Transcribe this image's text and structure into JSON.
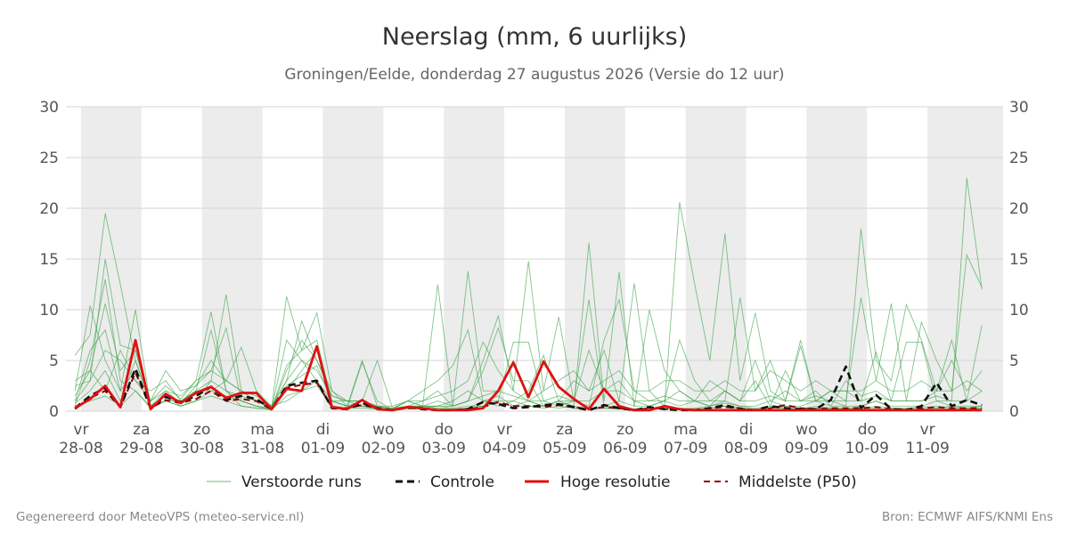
{
  "chart_data": {
    "type": "line",
    "title": "Neerslag (mm, 6 uurlijks)",
    "subtitle": "Groningen/Eelde, donderdag 27 augustus 2026 (Versie do 12 uur)",
    "ylim": [
      0,
      30
    ],
    "yticks": [
      0,
      5,
      10,
      15,
      20,
      25,
      30
    ],
    "xlim": [
      0,
      62
    ],
    "x_ticks": [
      {
        "x": 1,
        "day": "vr",
        "date": "28-08"
      },
      {
        "x": 5,
        "day": "za",
        "date": "29-08"
      },
      {
        "x": 9,
        "day": "zo",
        "date": "30-08"
      },
      {
        "x": 13,
        "day": "ma",
        "date": "31-08"
      },
      {
        "x": 17,
        "day": "di",
        "date": "01-09"
      },
      {
        "x": 21,
        "day": "wo",
        "date": "02-09"
      },
      {
        "x": 25,
        "day": "do",
        "date": "03-09"
      },
      {
        "x": 29,
        "day": "vr",
        "date": "04-09"
      },
      {
        "x": 33,
        "day": "za",
        "date": "05-09"
      },
      {
        "x": 37,
        "day": "zo",
        "date": "06-09"
      },
      {
        "x": 41,
        "day": "ma",
        "date": "07-09"
      },
      {
        "x": 45,
        "day": "di",
        "date": "08-09"
      },
      {
        "x": 49,
        "day": "wo",
        "date": "09-09"
      },
      {
        "x": 53,
        "day": "do",
        "date": "10-09"
      },
      {
        "x": 57,
        "day": "vr",
        "date": "11-09"
      }
    ],
    "shaded_days": [
      [
        1,
        5
      ],
      [
        9,
        13
      ],
      [
        17,
        21
      ],
      [
        25,
        29
      ],
      [
        33,
        37
      ],
      [
        41,
        45
      ],
      [
        49,
        53
      ],
      [
        57,
        62
      ]
    ],
    "grid": true,
    "legend_position": "bottom",
    "series": [
      {
        "name": "Controle",
        "style": "dashed",
        "color": "#111111",
        "values": [
          0.3,
          1.5,
          2.3,
          0.4,
          4.2,
          0.3,
          1.4,
          0.9,
          1.5,
          2.4,
          1.1,
          1.5,
          1.2,
          0.2,
          2.5,
          2.8,
          3.0,
          0.3,
          0.2,
          0.8,
          0.3,
          0.1,
          0.4,
          0.2,
          0.1,
          0.1,
          0.2,
          0.9,
          0.7,
          0.3,
          0.4,
          0.6,
          0.7,
          0.4,
          0.1,
          0.6,
          0.3,
          0.1,
          0.4,
          0.2,
          0.1,
          0.1,
          0.3,
          0.6,
          0.2,
          0.1,
          0.5,
          0.3,
          0.2,
          0.2,
          1.1,
          4.4,
          0.3,
          1.6,
          0.2,
          0.1,
          0.5,
          2.8,
          0.5,
          1.1,
          0.6
        ]
      },
      {
        "name": "Hoge resolutie",
        "style": "solid",
        "color": "#e01010",
        "values": [
          0.3,
          1.2,
          2.5,
          0.4,
          7.0,
          0.2,
          1.7,
          0.8,
          1.8,
          2.4,
          1.3,
          1.8,
          1.8,
          0.2,
          2.2,
          2.0,
          6.4,
          0.4,
          0.2,
          1.1,
          0.2,
          0.1,
          0.4,
          0.3,
          0.1,
          0.1,
          0.1,
          0.3,
          2.0,
          4.8,
          1.4,
          4.9,
          2.4,
          1.2,
          0.2,
          2.2,
          0.5,
          0.1,
          0.1,
          0.5,
          0.2,
          0.1,
          0.1,
          0.1,
          0.1,
          0.1,
          0.1,
          0.1,
          0.1,
          0.1,
          0.1,
          0.1,
          0.1,
          0.1,
          0.1,
          0.1,
          0.1,
          0.1,
          0.1,
          0.1,
          0.1
        ]
      },
      {
        "name": "Middelste (P50)",
        "style": "dashed",
        "color": "#8b0000",
        "values": [
          0.2,
          1.3,
          2.0,
          0.4,
          3.8,
          0.3,
          1.1,
          0.8,
          1.2,
          2.0,
          1.0,
          1.2,
          1.0,
          0.2,
          2.3,
          2.6,
          2.8,
          0.4,
          0.3,
          0.6,
          0.3,
          0.1,
          0.3,
          0.3,
          0.1,
          0.1,
          0.2,
          0.4,
          0.9,
          0.5,
          0.5,
          0.4,
          0.6,
          0.4,
          0.2,
          0.4,
          0.3,
          0.1,
          0.3,
          0.2,
          0.2,
          0.1,
          0.3,
          0.4,
          0.3,
          0.1,
          0.3,
          0.6,
          0.3,
          0.2,
          0.3,
          0.3,
          0.3,
          0.4,
          0.2,
          0.2,
          0.3,
          0.4,
          0.3,
          0.3,
          0.3
        ]
      }
    ],
    "ensemble": {
      "name": "Verstoorde runs",
      "color": "#2e9e3e",
      "members": [
        [
          5.5,
          7.5,
          19.5,
          12.5,
          5.0,
          1.0,
          2.5,
          1.2,
          3.0,
          9.8,
          2.0,
          1.5,
          1.0,
          0.5,
          2.0,
          4.0,
          6.0,
          1.0,
          0.5,
          1.0,
          0.3,
          0.1,
          0.5,
          0.5,
          0.3,
          0.2,
          0.3,
          1.0,
          1.5,
          0.5,
          1.0,
          0.5,
          1.0,
          0.3,
          0.2,
          0.5,
          0.5,
          0.2,
          0.3,
          0.5,
          0.2,
          0.3,
          0.5,
          0.8,
          0.5,
          0.3,
          0.5,
          0.3,
          0.2,
          0.5,
          0.3,
          0.2,
          0.5,
          1.0,
          0.3,
          0.2,
          0.5,
          0.3,
          0.5,
          0.3,
          0.5
        ],
        [
          2.0,
          10.4,
          5.0,
          2.0,
          10.0,
          0.5,
          1.5,
          1.0,
          2.0,
          3.0,
          11.5,
          2.0,
          1.0,
          0.3,
          11.3,
          6.0,
          9.7,
          2.0,
          0.5,
          5.0,
          0.5,
          0.2,
          1.0,
          0.5,
          0.5,
          0.3,
          0.5,
          0.5,
          1.0,
          1.0,
          0.5,
          0.5,
          0.3,
          0.5,
          0.2,
          0.3,
          0.2,
          0.2,
          0.3,
          0.2,
          0.3,
          0.2,
          0.3,
          0.5,
          0.3,
          0.2,
          0.3,
          0.5,
          0.3,
          0.3,
          0.3,
          0.3,
          0.2,
          0.5,
          0.3,
          0.3,
          0.3,
          0.5,
          0.3,
          0.3,
          0.3
        ],
        [
          1.0,
          3.0,
          15.0,
          6.5,
          6.0,
          0.5,
          2.0,
          0.8,
          2.5,
          5.0,
          3.0,
          6.3,
          2.0,
          0.5,
          3.0,
          8.9,
          5.0,
          1.5,
          1.0,
          1.0,
          5.0,
          0.3,
          1.0,
          0.5,
          12.5,
          0.5,
          13.8,
          2.0,
          2.0,
          5.0,
          1.0,
          0.5,
          1.0,
          0.5,
          16.6,
          1.0,
          13.7,
          0.5,
          0.5,
          1.0,
          0.5,
          1.0,
          0.5,
          1.0,
          0.5,
          0.5,
          1.0,
          0.5,
          0.5,
          1.0,
          0.5,
          0.5,
          0.5,
          1.0,
          0.5,
          0.5,
          0.5,
          1.0,
          0.5,
          0.5,
          0.5
        ],
        [
          0.5,
          5.0,
          13.0,
          3.0,
          2.0,
          0.5,
          1.0,
          0.5,
          1.0,
          2.0,
          1.5,
          1.0,
          0.5,
          0.3,
          2.5,
          3.5,
          4.5,
          1.0,
          0.5,
          0.5,
          0.3,
          0.2,
          0.3,
          0.3,
          0.5,
          0.5,
          1.0,
          5.0,
          9.4,
          2.0,
          14.8,
          2.0,
          9.3,
          1.0,
          11.0,
          0.5,
          1.0,
          12.6,
          2.0,
          0.5,
          20.6,
          12.5,
          5.0,
          17.5,
          3.0,
          9.7,
          2.0,
          1.0,
          7.0,
          1.0,
          2.0,
          1.0,
          11.2,
          3.0,
          10.6,
          1.0,
          8.8,
          5.0,
          2.0,
          15.4,
          12.2
        ],
        [
          1.5,
          4.0,
          10.6,
          4.0,
          6.0,
          1.0,
          2.0,
          1.5,
          3.0,
          4.0,
          8.2,
          1.0,
          0.5,
          0.2,
          4.0,
          7.0,
          5.0,
          2.0,
          1.0,
          0.5,
          0.2,
          0.1,
          0.3,
          0.5,
          0.5,
          1.0,
          2.0,
          1.0,
          1.0,
          6.8,
          6.8,
          1.0,
          0.5,
          1.0,
          6.0,
          2.0,
          3.0,
          1.0,
          0.5,
          1.0,
          2.0,
          1.0,
          3.0,
          2.0,
          1.0,
          5.0,
          1.0,
          2.0,
          1.0,
          1.0,
          1.0,
          0.5,
          18.0,
          5.0,
          3.0,
          10.5,
          7.0,
          2.0,
          5.0,
          2.0,
          4.0
        ],
        [
          1.0,
          6.0,
          8.0,
          2.0,
          4.0,
          0.5,
          1.0,
          1.0,
          2.0,
          8.0,
          2.0,
          1.0,
          0.5,
          0.2,
          4.5,
          6.0,
          7.0,
          1.0,
          0.5,
          0.5,
          0.5,
          0.2,
          0.5,
          1.0,
          2.0,
          0.5,
          1.0,
          4.0,
          8.2,
          3.0,
          3.0,
          0.5,
          1.0,
          3.0,
          2.0,
          6.0,
          1.0,
          0.5,
          10.0,
          4.0,
          2.0,
          1.0,
          0.5,
          2.0,
          1.0,
          3.0,
          0.5,
          4.0,
          1.0,
          2.0,
          0.5,
          3.0,
          1.5,
          2.0,
          1.0,
          6.8,
          6.8,
          1.0,
          1.0,
          23.0,
          12.0
        ],
        [
          2.5,
          3.0,
          6.0,
          5.0,
          3.0,
          1.0,
          4.0,
          2.0,
          2.5,
          4.0,
          3.0,
          2.0,
          1.5,
          0.5,
          3.0,
          5.0,
          4.0,
          1.5,
          1.0,
          1.0,
          0.5,
          0.3,
          0.5,
          0.5,
          1.0,
          0.5,
          1.0,
          1.5,
          2.0,
          1.5,
          1.0,
          1.0,
          1.5,
          1.0,
          1.0,
          2.0,
          2.0,
          1.0,
          1.0,
          1.5,
          1.0,
          1.0,
          1.0,
          2.0,
          1.0,
          1.0,
          1.5,
          1.0,
          1.0,
          1.5,
          1.0,
          1.0,
          1.0,
          1.5,
          1.0,
          1.0,
          1.0,
          1.5,
          1.0,
          1.0,
          8.5
        ],
        [
          0.8,
          2.0,
          4.0,
          1.0,
          5.0,
          0.5,
          1.5,
          0.5,
          1.0,
          3.0,
          2.0,
          0.5,
          0.3,
          0.2,
          7.0,
          5.0,
          3.0,
          0.5,
          0.3,
          4.8,
          1.0,
          0.2,
          1.0,
          2.0,
          3.0,
          4.5,
          8.0,
          1.0,
          0.5,
          1.0,
          2.0,
          5.5,
          1.0,
          1.0,
          0.5,
          7.0,
          11.0,
          2.0,
          1.0,
          1.0,
          7.0,
          3.0,
          1.0,
          1.0,
          11.2,
          2.0,
          5.0,
          1.0,
          6.4,
          1.0,
          2.0,
          2.0,
          1.0,
          5.8,
          1.0,
          1.0,
          1.0,
          2.0,
          7.0,
          1.0,
          2.0
        ],
        [
          3.0,
          4.0,
          2.0,
          6.0,
          3.0,
          2.0,
          3.0,
          1.0,
          2.0,
          2.0,
          3.0,
          2.0,
          1.0,
          0.5,
          1.0,
          2.0,
          3.0,
          1.0,
          1.0,
          1.0,
          0.5,
          0.5,
          1.0,
          1.0,
          1.5,
          2.0,
          3.0,
          6.8,
          4.0,
          2.0,
          1.0,
          2.0,
          3.0,
          4.0,
          2.0,
          3.0,
          4.0,
          2.0,
          2.0,
          3.0,
          3.0,
          2.0,
          2.0,
          3.0,
          2.0,
          2.0,
          4.0,
          3.0,
          2.0,
          3.0,
          2.0,
          2.0,
          2.0,
          3.0,
          2.0,
          2.0,
          3.0,
          2.0,
          2.0,
          3.0,
          2.0
        ],
        [
          0.5,
          1.0,
          1.5,
          0.5,
          2.0,
          0.3,
          1.0,
          0.5,
          1.0,
          1.5,
          1.0,
          0.5,
          0.3,
          0.1,
          1.5,
          2.0,
          2.5,
          0.5,
          0.3,
          0.3,
          0.2,
          0.1,
          0.2,
          0.2,
          0.3,
          0.2,
          0.3,
          0.5,
          0.8,
          0.5,
          0.5,
          0.3,
          0.5,
          0.3,
          0.2,
          0.3,
          0.3,
          0.2,
          0.2,
          0.3,
          0.2,
          0.2,
          0.3,
          0.5,
          0.3,
          0.2,
          0.3,
          0.3,
          0.2,
          0.3,
          0.2,
          0.2,
          0.2,
          0.3,
          0.2,
          0.2,
          0.2,
          0.3,
          0.2,
          0.2,
          0.3
        ]
      ]
    }
  },
  "footer": {
    "left": "Gegenereerd door MeteoVPS (meteo-service.nl)",
    "right": "Bron: ECMWF AIFS/KNMI Ens"
  }
}
